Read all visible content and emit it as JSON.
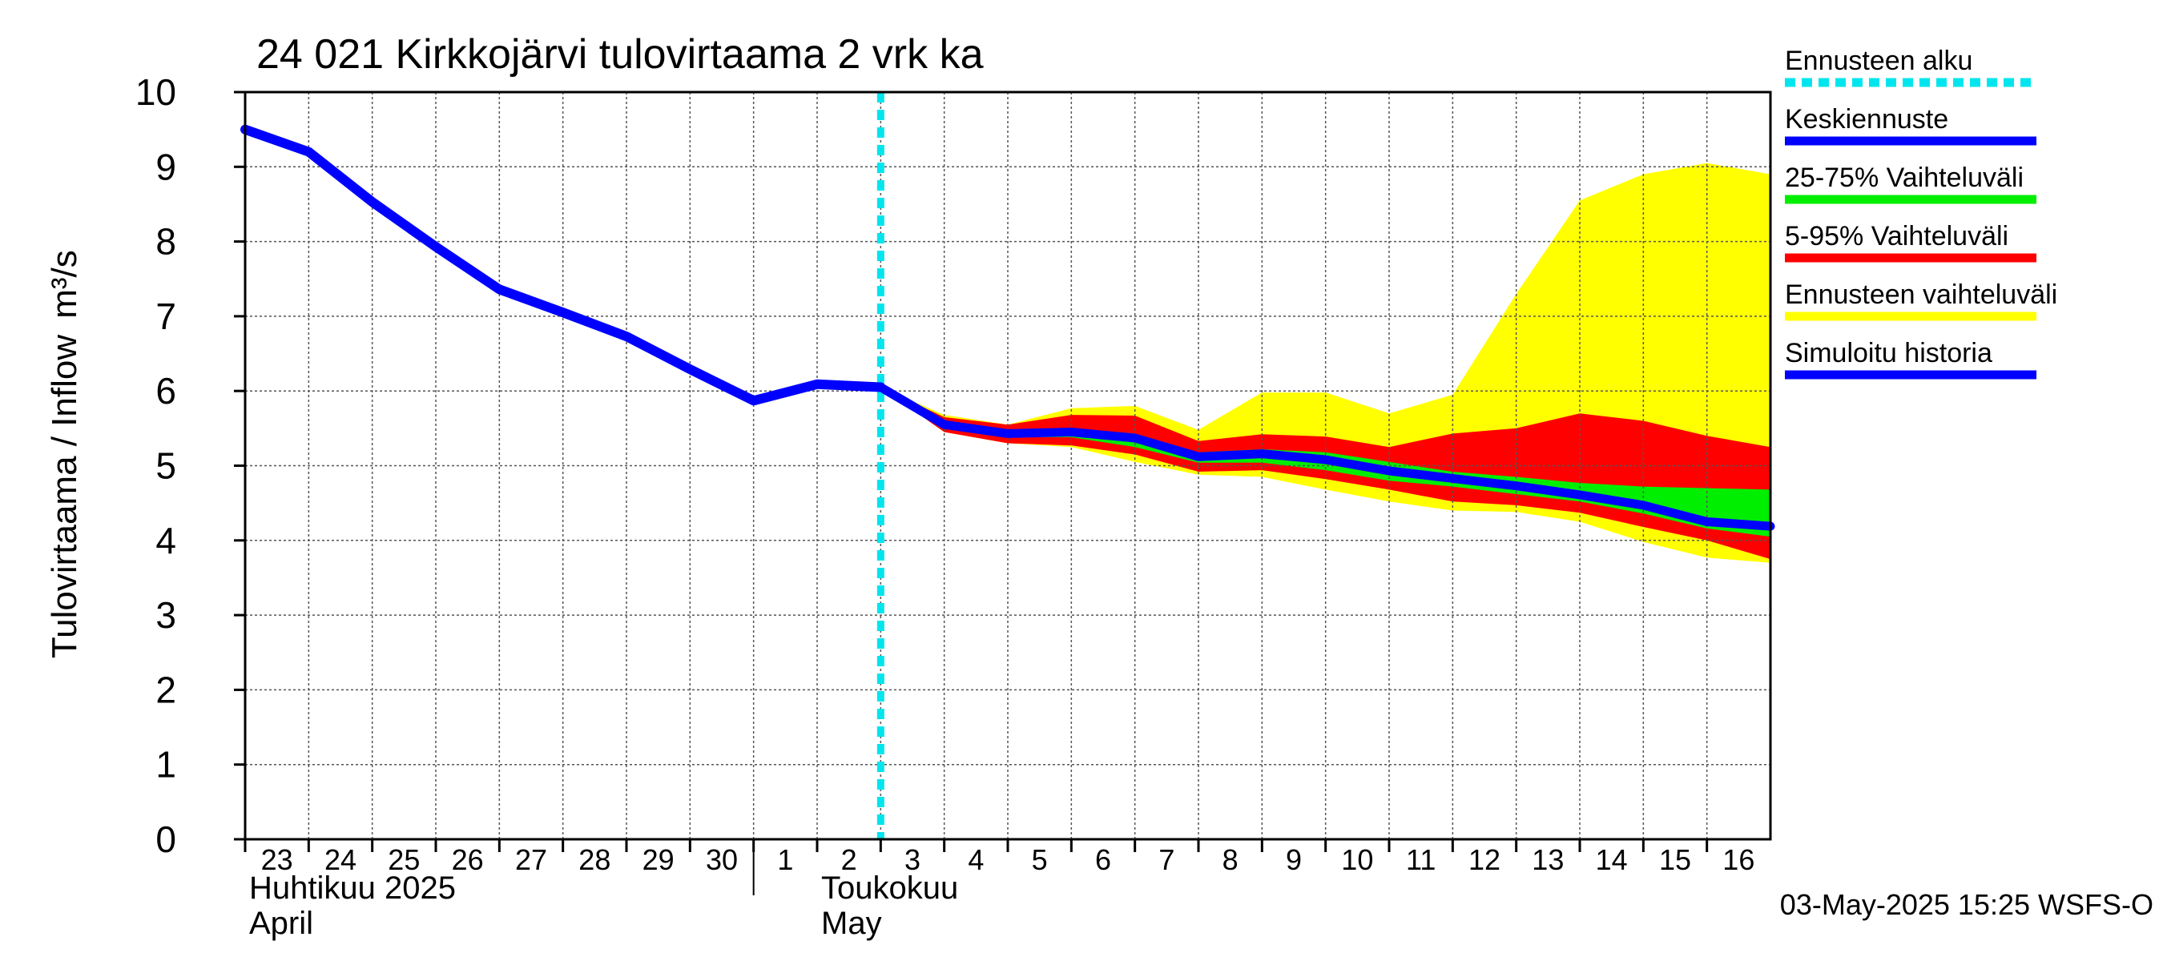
{
  "chart_data": {
    "type": "area",
    "title": "24 021 Kirkkojärvi tulovirtaama 2 vrk ka",
    "ylabel": "Tulovirtaama / Inflow",
    "yunit": "m³/s",
    "ylim": [
      0,
      10
    ],
    "yticks": [
      0,
      1,
      2,
      3,
      4,
      5,
      6,
      7,
      8,
      9,
      10
    ],
    "xlim": [
      "2025-04-23",
      "2025-05-17"
    ],
    "grid": true,
    "legend_position": "right",
    "x_tick_labels": [
      {
        "date": "2025-04-23",
        "label": "23"
      },
      {
        "date": "2025-04-24",
        "label": "24"
      },
      {
        "date": "2025-04-25",
        "label": "25"
      },
      {
        "date": "2025-04-26",
        "label": "26"
      },
      {
        "date": "2025-04-27",
        "label": "27"
      },
      {
        "date": "2025-04-28",
        "label": "28"
      },
      {
        "date": "2025-04-29",
        "label": "29"
      },
      {
        "date": "2025-04-30",
        "label": "30"
      },
      {
        "date": "2025-05-01",
        "label": "1"
      },
      {
        "date": "2025-05-02",
        "label": "2"
      },
      {
        "date": "2025-05-03",
        "label": "3"
      },
      {
        "date": "2025-05-04",
        "label": "4"
      },
      {
        "date": "2025-05-05",
        "label": "5"
      },
      {
        "date": "2025-05-06",
        "label": "6"
      },
      {
        "date": "2025-05-07",
        "label": "7"
      },
      {
        "date": "2025-05-08",
        "label": "8"
      },
      {
        "date": "2025-05-09",
        "label": "9"
      },
      {
        "date": "2025-05-10",
        "label": "10"
      },
      {
        "date": "2025-05-11",
        "label": "11"
      },
      {
        "date": "2025-05-12",
        "label": "12"
      },
      {
        "date": "2025-05-13",
        "label": "13"
      },
      {
        "date": "2025-05-14",
        "label": "14"
      },
      {
        "date": "2025-05-15",
        "label": "15"
      },
      {
        "date": "2025-05-16",
        "label": "16"
      }
    ],
    "month_labels": [
      {
        "date": "2025-04-23",
        "line1": "Huhtikuu  2025",
        "line2": "April"
      },
      {
        "date": "2025-05-02",
        "line1": "Toukokuu",
        "line2": "May"
      }
    ],
    "month_divider_date": "2025-05-01",
    "forecast_start_date": "2025-05-03",
    "timestamp": "03-May-2025 15:25 WSFS-O",
    "legend": [
      {
        "label": "Ennusteen alku",
        "color": "#00e5ee",
        "style": "dashed"
      },
      {
        "label": "Keskiennuste",
        "color": "#0000ff",
        "style": "solid"
      },
      {
        "label": "25-75% Vaihteluväli",
        "color": "#00ee00",
        "style": "solid"
      },
      {
        "label": "5-95% Vaihteluväli",
        "color": "#ff0000",
        "style": "solid"
      },
      {
        "label": "Ennusteen vaihteluväli",
        "color": "#ffff00",
        "style": "solid"
      },
      {
        "label": "Simuloitu historia",
        "color": "#0000ff",
        "style": "solid"
      }
    ],
    "colors": {
      "history": "#0000ff",
      "median": "#0000ff",
      "band_25_75": "#00ee00",
      "band_5_95": "#ff0000",
      "band_full": "#ffff00",
      "forecast_start": "#00e5ee",
      "grid": "#555555"
    },
    "history": {
      "x": [
        "2025-04-23",
        "2025-04-24",
        "2025-04-25",
        "2025-04-26",
        "2025-04-27",
        "2025-04-28",
        "2025-04-29",
        "2025-04-30",
        "2025-05-01",
        "2025-05-02",
        "2025-05-03"
      ],
      "y": [
        9.5,
        9.2,
        8.53,
        7.93,
        7.36,
        7.05,
        6.73,
        6.29,
        5.87,
        6.09,
        6.05
      ]
    },
    "forecast": {
      "x": [
        "2025-05-03",
        "2025-05-04",
        "2025-05-05",
        "2025-05-06",
        "2025-05-07",
        "2025-05-08",
        "2025-05-09",
        "2025-05-10",
        "2025-05-11",
        "2025-05-12",
        "2025-05-13",
        "2025-05-14",
        "2025-05-15",
        "2025-05-16",
        "2025-05-17"
      ],
      "median": [
        6.05,
        5.55,
        5.43,
        5.45,
        5.37,
        5.12,
        5.16,
        5.08,
        4.93,
        4.83,
        4.73,
        4.61,
        4.47,
        4.25,
        4.19
      ],
      "p25": [
        6.05,
        5.5,
        5.38,
        5.38,
        5.25,
        5.04,
        5.04,
        4.94,
        4.8,
        4.72,
        4.62,
        4.52,
        4.36,
        4.16,
        4.05
      ],
      "p75": [
        6.05,
        5.6,
        5.47,
        5.5,
        5.43,
        5.18,
        5.22,
        5.18,
        5.05,
        4.92,
        4.85,
        4.77,
        4.72,
        4.7,
        4.68
      ],
      "p5": [
        6.05,
        5.45,
        5.3,
        5.27,
        5.15,
        4.92,
        4.94,
        4.82,
        4.68,
        4.52,
        4.47,
        4.37,
        4.18,
        4.0,
        3.75
      ],
      "p95": [
        6.05,
        5.65,
        5.55,
        5.68,
        5.67,
        5.33,
        5.42,
        5.39,
        5.25,
        5.43,
        5.5,
        5.7,
        5.6,
        5.4,
        5.25
      ],
      "min": [
        6.05,
        5.45,
        5.3,
        5.25,
        5.05,
        4.88,
        4.85,
        4.68,
        4.52,
        4.4,
        4.38,
        4.25,
        3.98,
        3.77,
        3.7
      ],
      "max": [
        6.05,
        5.68,
        5.55,
        5.77,
        5.8,
        5.48,
        5.98,
        5.98,
        5.7,
        5.95,
        7.3,
        8.55,
        8.9,
        9.05,
        8.9
      ]
    }
  }
}
